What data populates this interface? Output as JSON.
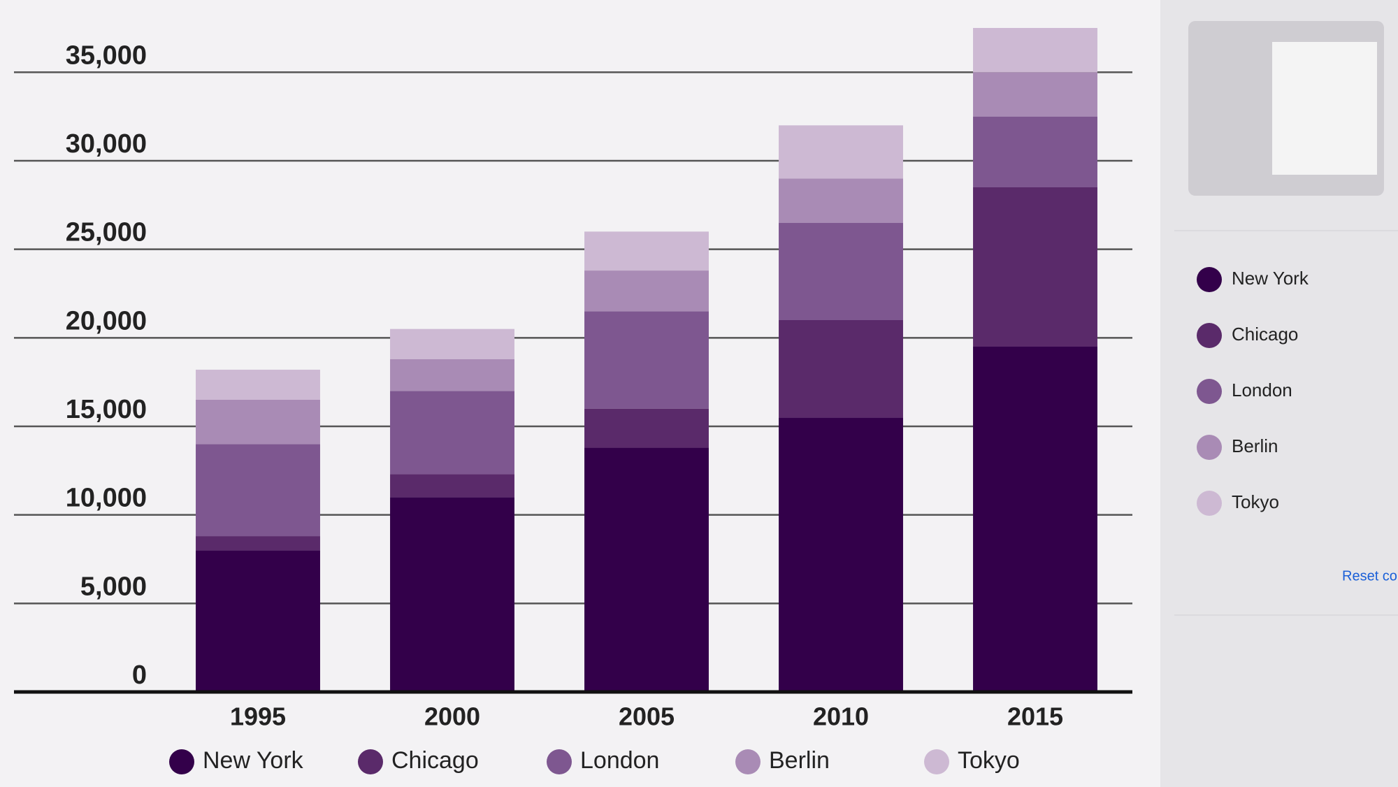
{
  "chart_data": {
    "type": "bar",
    "stacked": true,
    "categories": [
      "1995",
      "2000",
      "2005",
      "2010",
      "2015"
    ],
    "series": [
      {
        "name": "New York",
        "color": "#33004a",
        "values": [
          8000,
          11000,
          13800,
          15500,
          19500
        ]
      },
      {
        "name": "Chicago",
        "color": "#5a2a6a",
        "values": [
          800,
          1300,
          2200,
          5500,
          9000
        ]
      },
      {
        "name": "London",
        "color": "#7e5790",
        "values": [
          5200,
          4700,
          5500,
          5500,
          4000
        ]
      },
      {
        "name": "Berlin",
        "color": "#a98bb5",
        "values": [
          2500,
          1800,
          2300,
          2500,
          2500
        ]
      },
      {
        "name": "Tokyo",
        "color": "#cdb9d3",
        "values": [
          1700,
          1700,
          2200,
          3000,
          2500
        ]
      }
    ],
    "ylim": [
      0,
      37500
    ],
    "yticks": [
      0,
      {
        "value": 5000,
        "label": "5,000"
      },
      {
        "value": 10000,
        "label": "10,000"
      },
      {
        "value": 15000,
        "label": "15,000"
      },
      {
        "value": 20000,
        "label": "20,000"
      },
      {
        "value": 25000,
        "label": "25,000"
      },
      {
        "value": 30000,
        "label": "30,000"
      },
      {
        "value": 35000,
        "label": "35,000"
      }
    ],
    "grid": true
  },
  "panel": {
    "reset_link": "Reset colors"
  }
}
